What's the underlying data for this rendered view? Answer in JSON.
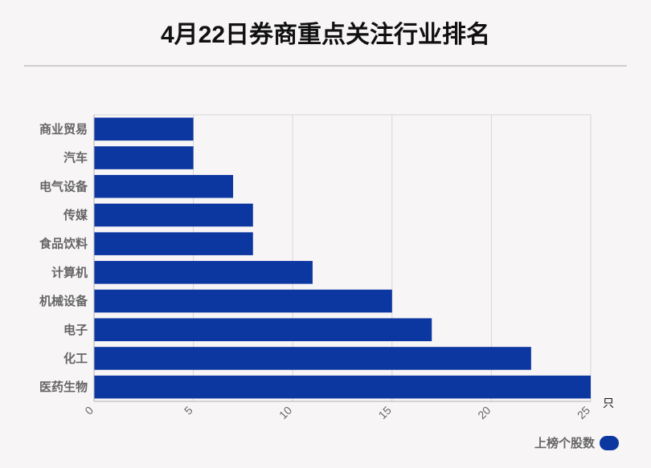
{
  "chart_data": {
    "type": "bar",
    "orientation": "horizontal",
    "title": "4月22日券商重点关注行业排名",
    "categories": [
      "商业贸易",
      "汽车",
      "电气设备",
      "传媒",
      "食品饮料",
      "计算机",
      "机械设备",
      "电子",
      "化工",
      "医药生物"
    ],
    "series": [
      {
        "name": "上榜个股数",
        "values": [
          5,
          5,
          7,
          8,
          8,
          11,
          15,
          17,
          22,
          25
        ]
      }
    ],
    "xlim": [
      0,
      25
    ],
    "xticks": [
      0,
      5,
      10,
      15,
      20,
      25
    ],
    "xunit": "只",
    "grid": true,
    "legend_position": "bottom-right",
    "colors": {
      "bar": "#0c36a0",
      "grid": "#d6d6d6",
      "axis": "#b0b0b0"
    }
  }
}
